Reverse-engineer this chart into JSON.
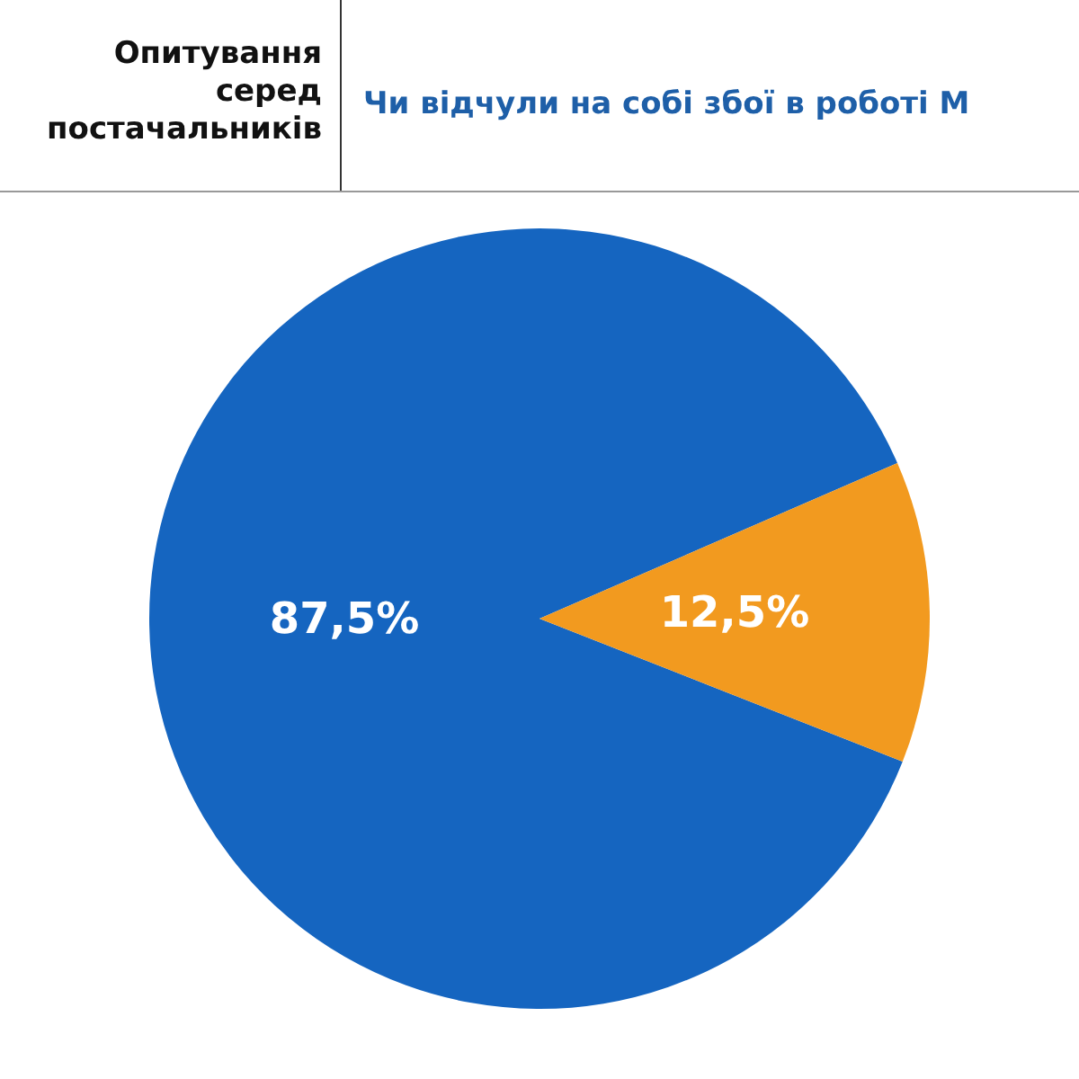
{
  "chart_data": {
    "type": "pie",
    "title": "Чи відчули на собі збої в роботі М",
    "subtitle": "Опитування серед постачальників",
    "categories": [
      null,
      null
    ],
    "values": [
      87.5,
      12.5
    ],
    "colors": [
      "#1565c0",
      "#f29a1f"
    ],
    "value_labels": [
      "87,5%",
      "12,5%"
    ],
    "legend": false
  }
}
